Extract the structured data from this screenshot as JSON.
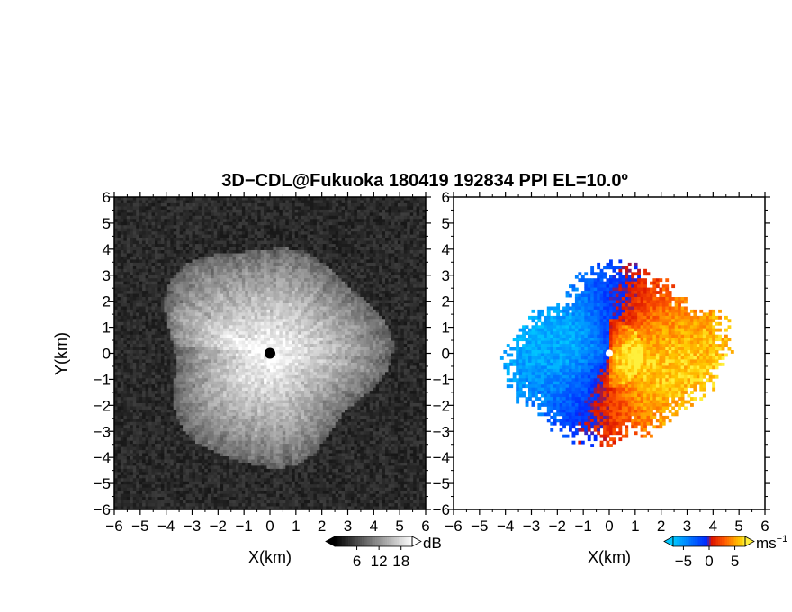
{
  "title": "3D−CDL@Fukuoka 180419 192834 PPI EL=10.0º",
  "chart_data": [
    {
      "type": "heatmap",
      "panel": "left",
      "quantity": "backscatter intensity",
      "xlabel": "X(km)",
      "ylabel": "Y(km)",
      "xlim": [
        -6,
        6
      ],
      "ylim": [
        -6,
        6
      ],
      "x_ticks": [
        "−6",
        "−5",
        "−4",
        "−3",
        "−2",
        "−1",
        "0",
        "1",
        "2",
        "3",
        "4",
        "5",
        "6"
      ],
      "y_ticks": [
        "6",
        "5",
        "4",
        "3",
        "2",
        "1",
        "0",
        "−1",
        "−2",
        "−3",
        "−4",
        "−5",
        "−6"
      ],
      "echo_radius_km": 4.2,
      "radar_center_km": [
        0,
        0
      ],
      "colorbar": {
        "unit": "dB",
        "ticks": [
          "6",
          "12",
          "18"
        ],
        "range": [
          0,
          21
        ],
        "colors": [
          "#000000",
          "#ffffff"
        ]
      },
      "background_color": "#161616"
    },
    {
      "type": "heatmap",
      "panel": "right",
      "quantity": "radial velocity",
      "xlabel": "X(km)",
      "xlim": [
        -6,
        6
      ],
      "ylim": [
        -6,
        6
      ],
      "x_ticks": [
        "−6",
        "−5",
        "−4",
        "−3",
        "−2",
        "−1",
        "0",
        "1",
        "2",
        "3",
        "4",
        "5",
        "6"
      ],
      "y_ticks": [
        "6",
        "5",
        "4",
        "3",
        "2",
        "1",
        "0",
        "−1",
        "−2",
        "−3",
        "−4",
        "−5",
        "−6"
      ],
      "echo_radius_km": 3.9,
      "approaching_side": "west",
      "receding_side": "east",
      "colorbar": {
        "unit": "ms",
        "unit_superscript": "−1",
        "ticks": [
          "−5",
          "0",
          "5"
        ],
        "range": [
          -7,
          7
        ],
        "colors": [
          "#00c0ff",
          "#0030ff",
          "#cc0000",
          "#ff6600",
          "#ffee00"
        ]
      },
      "background_color": "#ffffff"
    }
  ]
}
